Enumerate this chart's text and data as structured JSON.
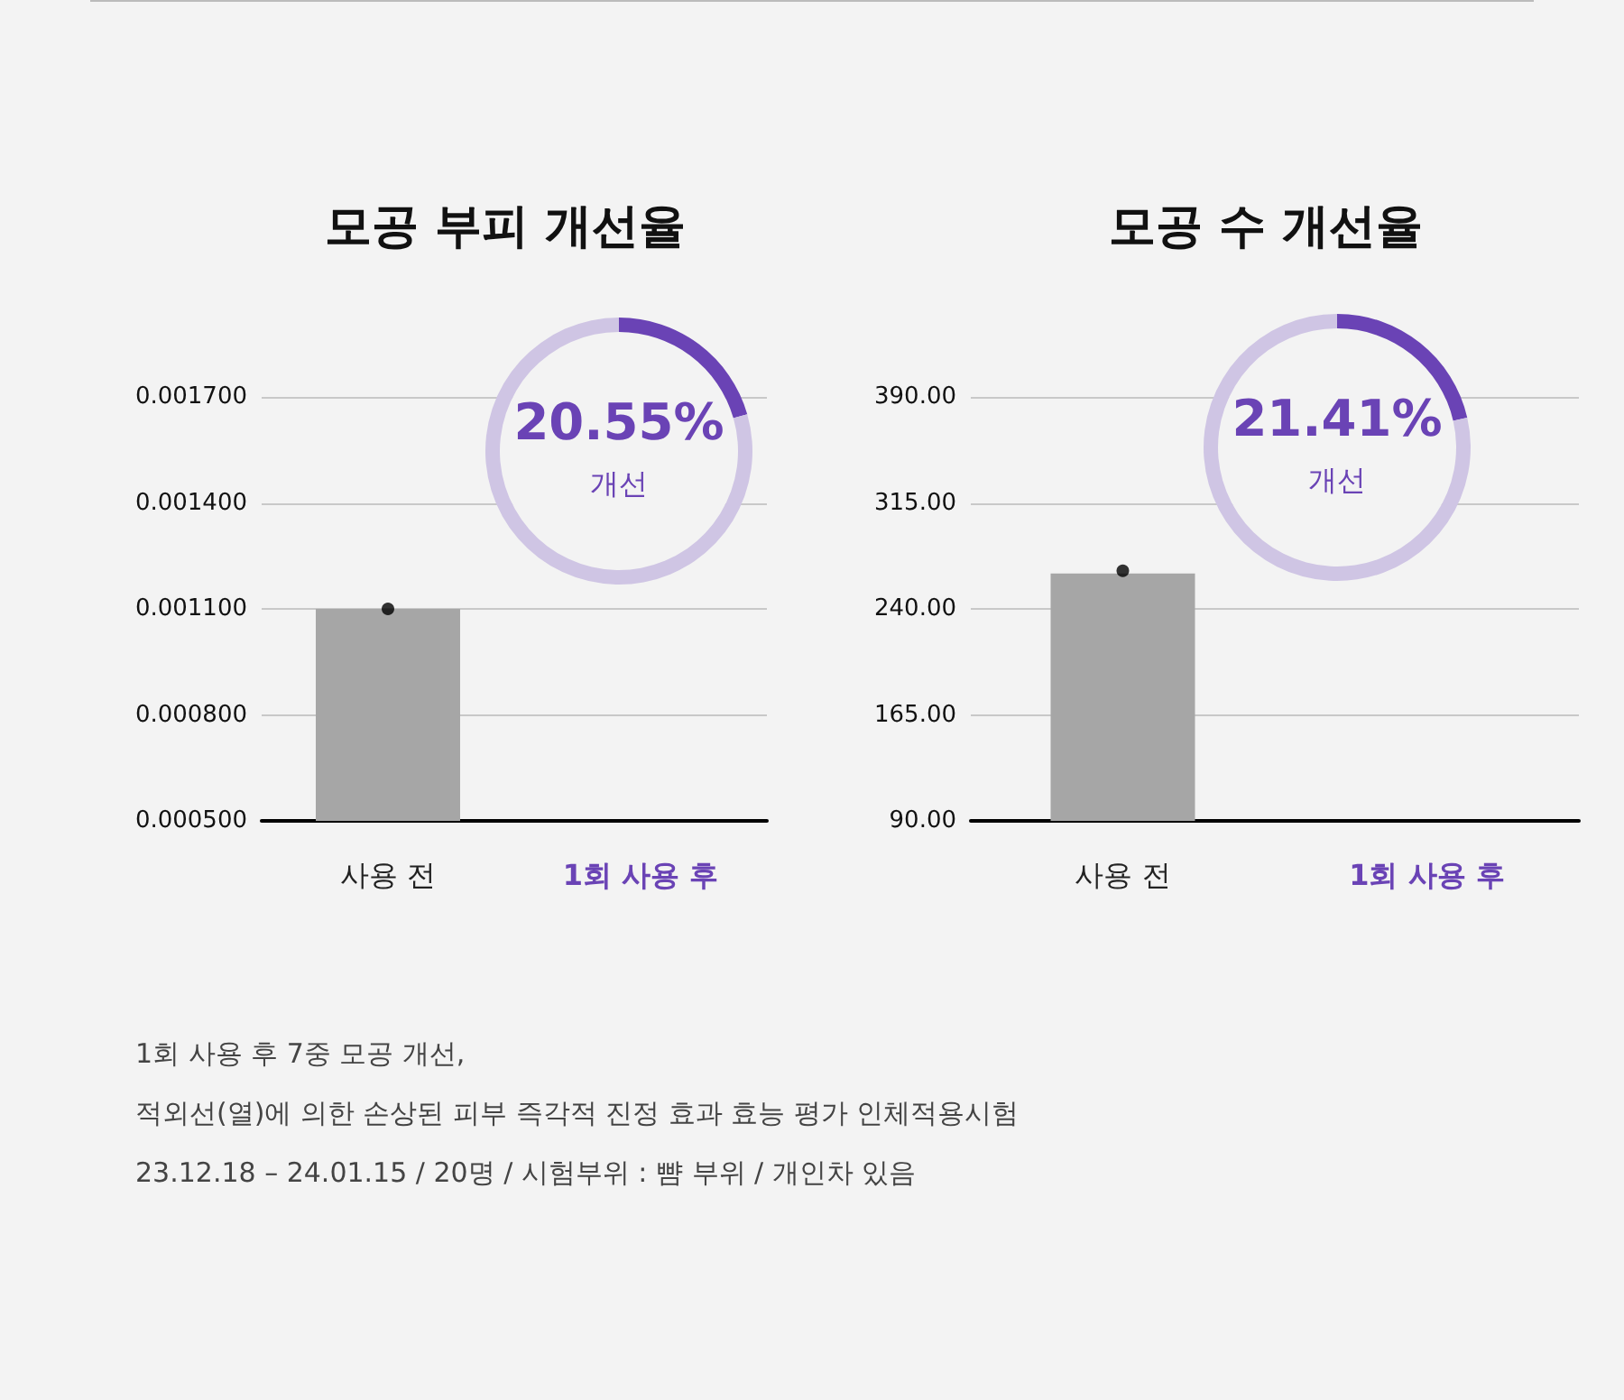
{
  "chart_data": [
    {
      "type": "bar",
      "title": "모공 부피 개선율",
      "categories": [
        "사용 전",
        "1회 사용 후"
      ],
      "series": [
        {
          "type": "bar",
          "color": "#a6a6a6",
          "values": [
            0.0011,
            null
          ]
        },
        {
          "type": "scatter",
          "color": "#000000",
          "x": [
            "사용 전"
          ],
          "values": [
            0.0011
          ],
          "marker": "circle"
        }
      ],
      "ylim": [
        0.0005,
        0.0017
      ],
      "yticks": [
        {
          "value": 0.0005,
          "label": "0.000500"
        },
        {
          "value": 0.0008,
          "label": "0.000800"
        },
        {
          "value": 0.0011,
          "label": "0.001100"
        },
        {
          "value": 0.0014,
          "label": "0.001400"
        },
        {
          "value": 0.0017,
          "label": "0.001700"
        }
      ],
      "grid": "y"
    },
    {
      "type": "donut",
      "categories": [
        null,
        null
      ],
      "values": [
        20.55,
        79.45
      ],
      "colors": [
        "#6a43b5",
        "#cfc5e4"
      ],
      "annotations": [
        "20.55%",
        "개선"
      ]
    },
    {
      "type": "bar",
      "title": "모공 수 개선율",
      "categories": [
        "사용 전",
        "1회 사용 후"
      ],
      "series": [
        {
          "type": "bar",
          "color": "#a6a6a6",
          "values": [
            265,
            null
          ]
        },
        {
          "type": "scatter",
          "color": "#000000",
          "x": [
            "사용 전"
          ],
          "values": [
            267
          ],
          "marker": "circle"
        }
      ],
      "ylim": [
        90,
        390
      ],
      "yticks": [
        {
          "value": 90,
          "label": "90.00"
        },
        {
          "value": 165,
          "label": "165.00"
        },
        {
          "value": 240,
          "label": "240.00"
        },
        {
          "value": 315,
          "label": "315.00"
        },
        {
          "value": 390,
          "label": "390.00"
        }
      ],
      "grid": "y"
    },
    {
      "type": "donut",
      "categories": [
        null,
        null
      ],
      "values": [
        21.41,
        78.59
      ],
      "colors": [
        "#6a43b5",
        "#cfc5e4"
      ],
      "annotations": [
        "21.41%",
        "개선"
      ]
    },
    {
      "type": "other",
      "annotations": [
        "1회 사용 후 7중 모공 개선,",
        "적외선(열)에 의한 손상된 피부 즉각적 진정 효과 효능 평가 인체적용시험",
        "23.12.18 – 24.01.15 / 20명 / 시험부위 : 뺨 부위 / 개인차 있음"
      ]
    }
  ]
}
